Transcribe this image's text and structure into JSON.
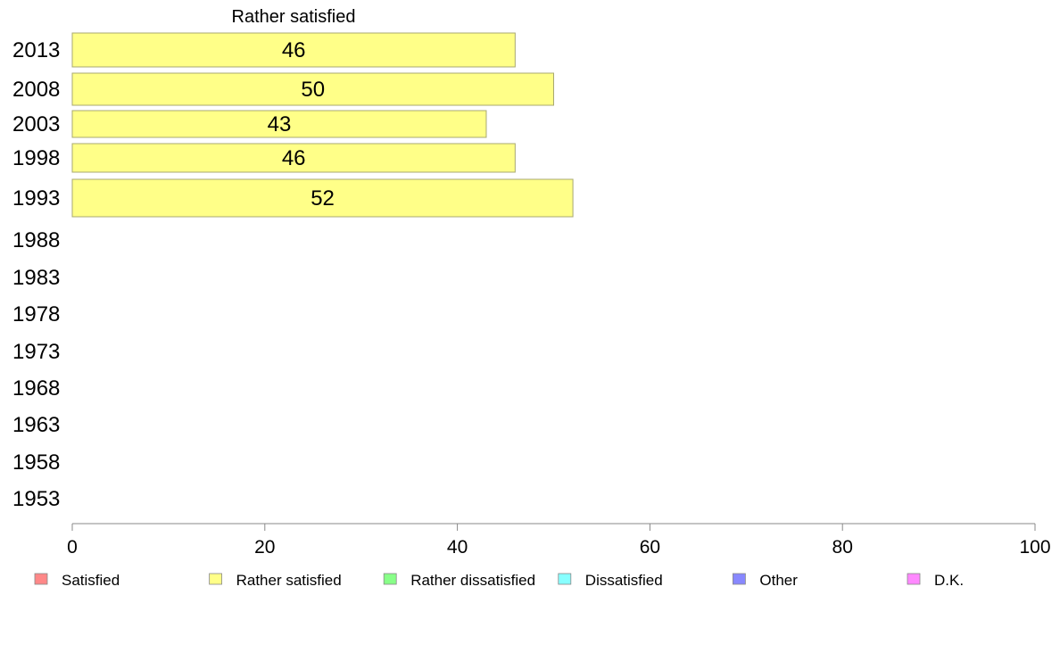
{
  "chart_data": {
    "type": "bar",
    "orientation": "horizontal",
    "title": "Rather satisfied",
    "xlabel": "",
    "ylabel": "",
    "xlim": [
      0,
      100
    ],
    "x_ticks": [
      0,
      20,
      40,
      60,
      80,
      100
    ],
    "categories": [
      "2013",
      "2008",
      "2003",
      "1998",
      "1993",
      "1988",
      "1983",
      "1978",
      "1973",
      "1968",
      "1963",
      "1958",
      "1953"
    ],
    "series": [
      {
        "name": "Rather satisfied",
        "color": "#ffff88",
        "values": [
          46,
          50,
          43,
          46,
          52,
          null,
          null,
          null,
          null,
          null,
          null,
          null,
          null
        ]
      }
    ],
    "bar_border_color": "#a8a870",
    "axis_color": "#888888",
    "grid": false,
    "legend": {
      "placement": "bottom",
      "entries": [
        {
          "label": "Satisfied",
          "color": "#ff8888"
        },
        {
          "label": "Rather satisfied",
          "color": "#ffff88"
        },
        {
          "label": "Rather dissatisfied",
          "color": "#88ff88"
        },
        {
          "label": "Dissatisfied",
          "color": "#88ffff"
        },
        {
          "label": "Other",
          "color": "#8888ff"
        },
        {
          "label": "D.K.",
          "color": "#ff88ff"
        }
      ]
    }
  }
}
